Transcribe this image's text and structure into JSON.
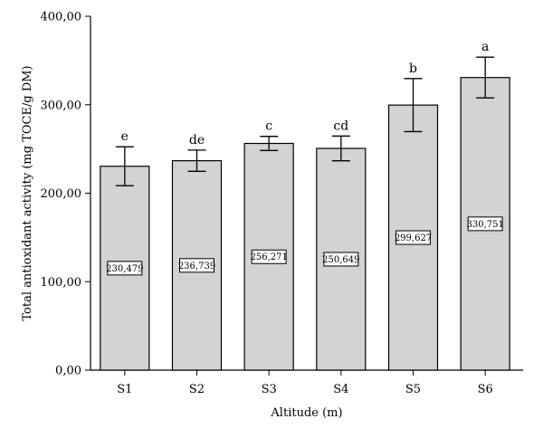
{
  "chart_data": {
    "type": "bar",
    "title": "",
    "xlabel": "Altitude (m)",
    "ylabel": "Total antioxidant activity (mg TOCE/g DM)",
    "ylim": [
      0,
      400
    ],
    "yticks": [
      0,
      100,
      200,
      300,
      400
    ],
    "ytick_labels": [
      "0,00",
      "100,00",
      "200,00",
      "300,00",
      "400,00"
    ],
    "categories": [
      "S1",
      "S2",
      "S3",
      "S4",
      "S5",
      "S6"
    ],
    "values": [
      230.479,
      236.739,
      256.271,
      250.649,
      299.627,
      330.751
    ],
    "value_labels": [
      "230,479",
      "236,739",
      "256,271",
      "250,649",
      "299,627",
      "330,751"
    ],
    "errors": [
      22,
      12,
      8,
      14,
      30,
      23
    ],
    "significance": [
      "e",
      "de",
      "c",
      "cd",
      "b",
      "a"
    ],
    "bar_color": "#d3d3d3",
    "grid": false,
    "legend": "none"
  }
}
